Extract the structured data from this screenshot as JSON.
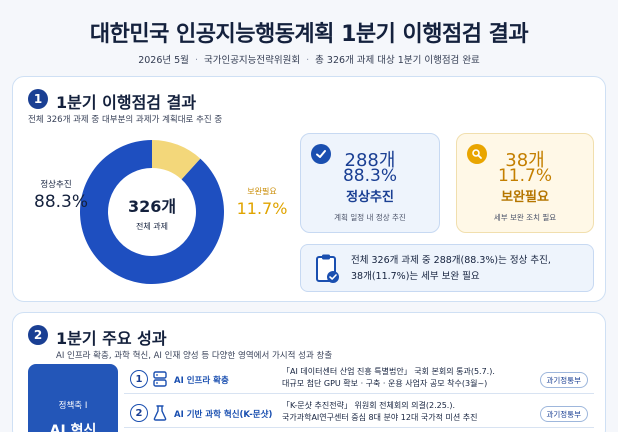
{
  "header": {
    "title": "대한민국 인공지능행동계획 1분기 이행점검 결과",
    "date": "2026년 5월",
    "org": "국가인공지능전략위원회",
    "scope": "총 326개 과제 대상 1분기 이행점검 완료"
  },
  "section1": {
    "number": "1",
    "title": "1분기 이행점검 결과",
    "desc": "전체 326개 과제 중 대부분의 과제가 계획대로 추진 중",
    "donut": {
      "center_value": "326개",
      "center_label": "전체 과제",
      "left_label": "정상추진",
      "left_value": "88.3%",
      "right_label": "보완필요",
      "right_value": "11.7%"
    },
    "normal": {
      "icon": "check-icon",
      "count": "288개",
      "percent": "88.3%",
      "label": "정상추진",
      "note": "계획 일정 내 정상 추진"
    },
    "improve": {
      "icon": "search-icon",
      "count": "38개",
      "percent": "11.7%",
      "label": "보완필요",
      "note": "세부 보완 조치 필요"
    },
    "summary": {
      "icon": "clipboard-check-icon",
      "line1": "전체 326개 과제 중 288개(88.3%)는 정상 추진,",
      "line2": "38개(11.7%)는 세부 보완 필요"
    }
  },
  "section2": {
    "number": "2",
    "title": "1분기 주요 성과",
    "desc": "AI 인프라 확충, 과학 혁신, AI 인재 양성 등 다양한 영역에서 가시적 성과 창출",
    "pillar": {
      "label": "정책축 Ⅰ",
      "title": "AI 혁신"
    },
    "rows": [
      {
        "num": "1",
        "icon": "server-icon",
        "label": "AI 인프라 확충",
        "desc1": "「AI 데이터센터 산업 진흥 특별법안」 국회 본회의 통과(5.7.).",
        "desc2": "대규모 첨단 GPU 확보 · 구축 · 운용 사업자 공모 착수(3월~)",
        "badge": "과기정통부"
      },
      {
        "num": "2",
        "icon": "flask-icon",
        "label": "AI 기반 과학 혁신(K-문샷)",
        "desc1": "「K-문샷 추진전략」 위원회 전체회의 의결(2.25.).",
        "desc2": "국가과학AI연구센터 중심 8대 분야 12대 국가적 미션 추진",
        "badge": "과기정통부"
      }
    ]
  },
  "chart_data": {
    "type": "pie",
    "categories": [
      "정상추진",
      "보완필요"
    ],
    "values": [
      88.3,
      11.7
    ],
    "counts": [
      288,
      38
    ],
    "total": 326,
    "colors": [
      "#1e4fc0",
      "#f3d77a"
    ]
  }
}
